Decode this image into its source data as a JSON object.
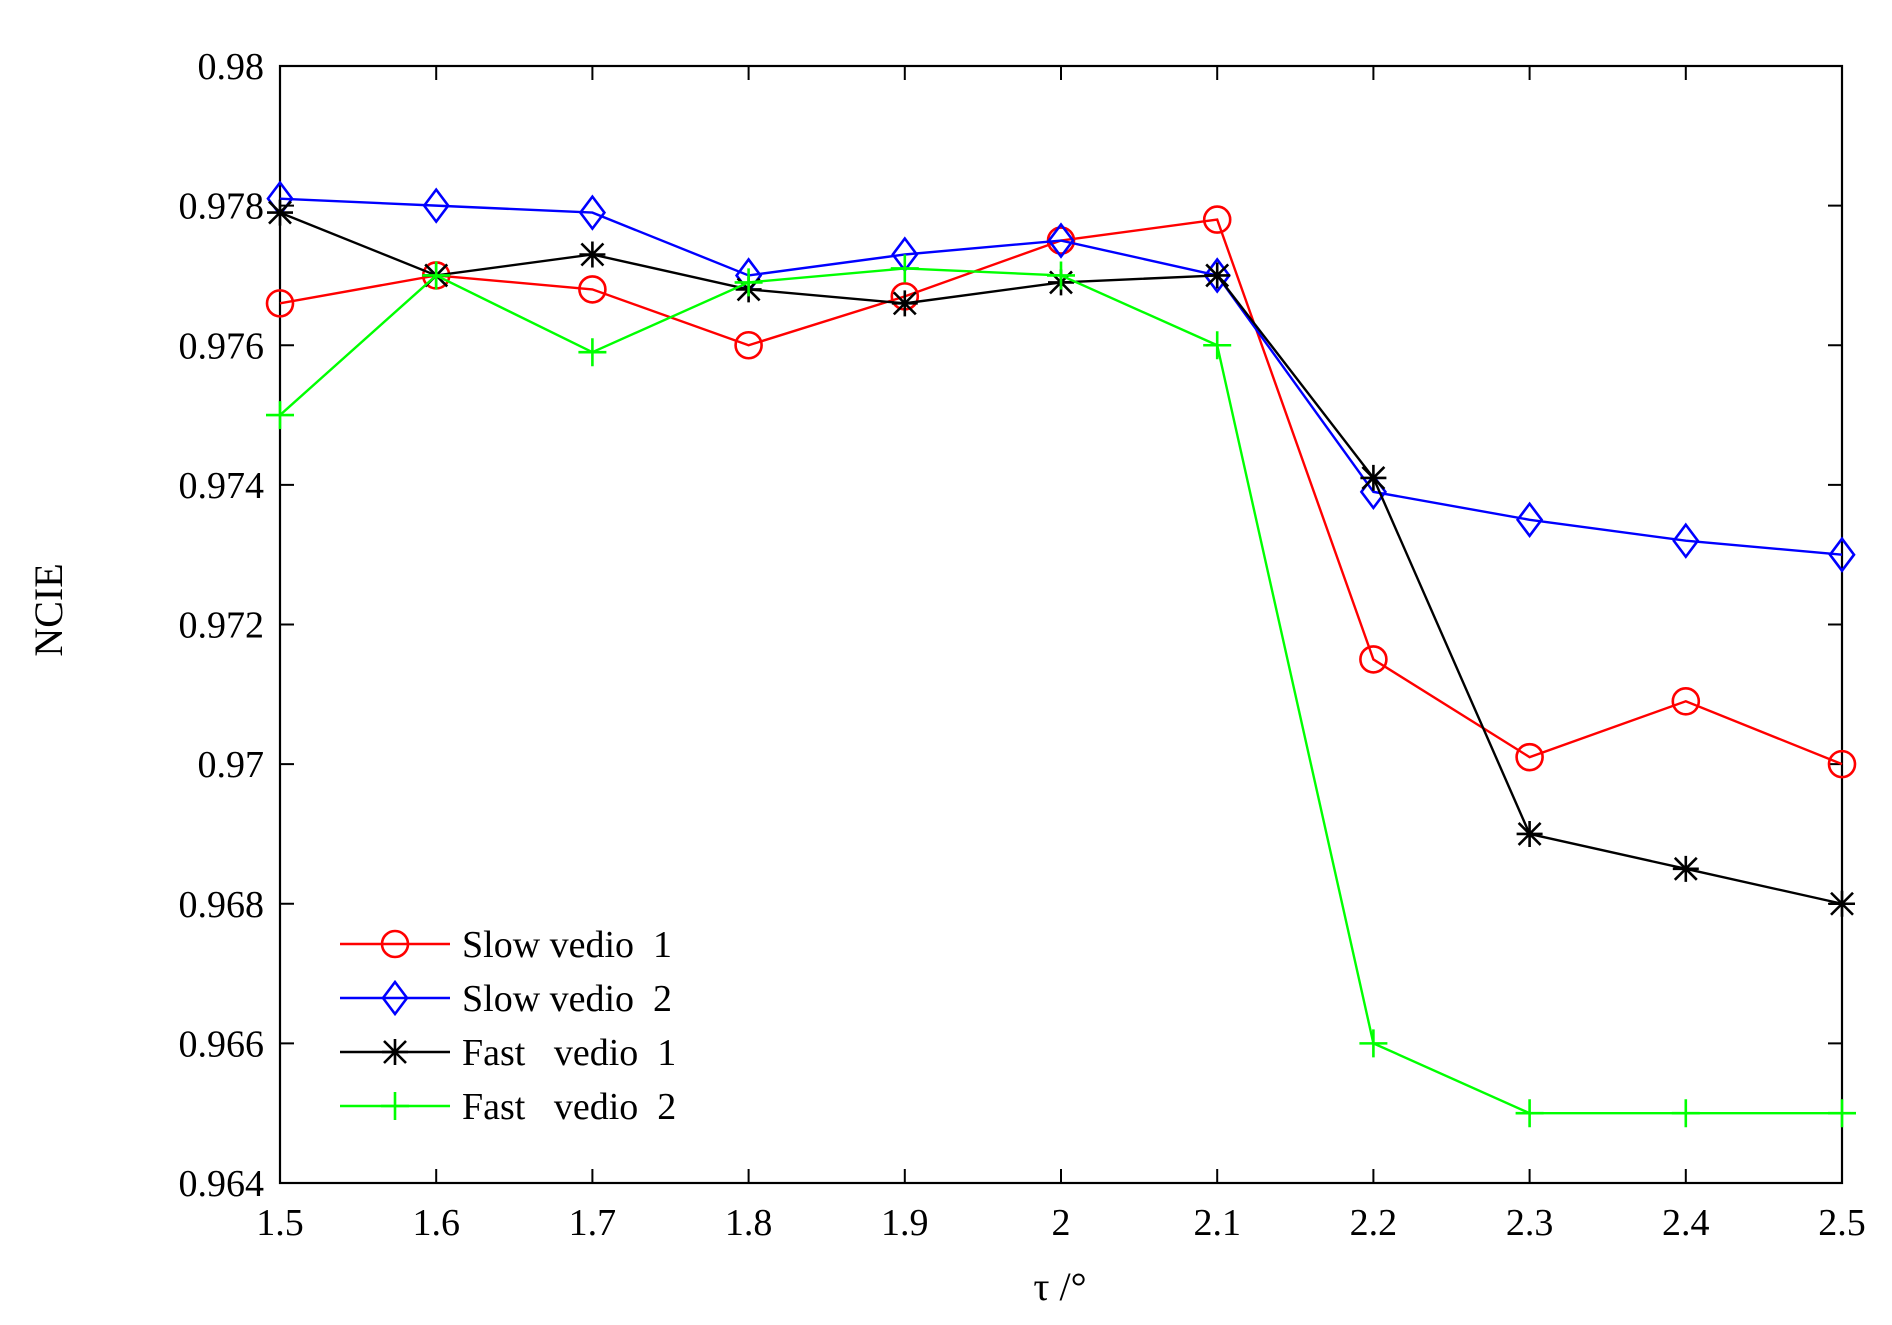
{
  "chart_data": {
    "type": "line",
    "title": "",
    "xlabel": "τ /°",
    "ylabel": "NCIE",
    "x": [
      1.5,
      1.6,
      1.7,
      1.8,
      1.9,
      2.0,
      2.1,
      2.2,
      2.3,
      2.4,
      2.5
    ],
    "xlim": [
      1.5,
      2.5
    ],
    "ylim": [
      0.964,
      0.98
    ],
    "xticks": [
      1.5,
      1.6,
      1.7,
      1.8,
      1.9,
      2.0,
      2.1,
      2.2,
      2.3,
      2.4,
      2.5
    ],
    "xtick_labels": [
      "1.5",
      "1.6",
      "1.7",
      "1.8",
      "1.9",
      "2",
      "2.1",
      "2.2",
      "2.3",
      "2.4",
      "2.5"
    ],
    "yticks": [
      0.964,
      0.966,
      0.968,
      0.97,
      0.972,
      0.974,
      0.976,
      0.978,
      0.98
    ],
    "ytick_labels": [
      "0.964",
      "0.966",
      "0.968",
      "0.97",
      "0.972",
      "0.974",
      "0.976",
      "0.978",
      "0.98"
    ],
    "grid": false,
    "legend_position": "bottom-left",
    "series": [
      {
        "name": "Slow vedio  1",
        "color": "#ff0000",
        "marker": "circle",
        "values": [
          0.9766,
          0.977,
          0.9768,
          0.976,
          0.9767,
          0.9775,
          0.9778,
          0.9715,
          0.9701,
          0.9709,
          0.97
        ]
      },
      {
        "name": "Slow vedio  2",
        "color": "#0000ff",
        "marker": "diamond",
        "values": [
          0.9781,
          0.978,
          0.9779,
          0.977,
          0.9773,
          0.9775,
          0.977,
          0.9739,
          0.9735,
          0.9732,
          0.973
        ]
      },
      {
        "name": "Fast   vedio  1",
        "color": "#000000",
        "marker": "asterisk",
        "values": [
          0.9779,
          0.977,
          0.9773,
          0.9768,
          0.9766,
          0.9769,
          0.977,
          0.9741,
          0.969,
          0.9685,
          0.968
        ]
      },
      {
        "name": "Fast   vedio  2",
        "color": "#00ff00",
        "marker": "plus",
        "values": [
          0.975,
          0.977,
          0.9759,
          0.9769,
          0.9771,
          0.977,
          0.976,
          0.966,
          0.965,
          0.965,
          0.965
        ]
      }
    ]
  }
}
